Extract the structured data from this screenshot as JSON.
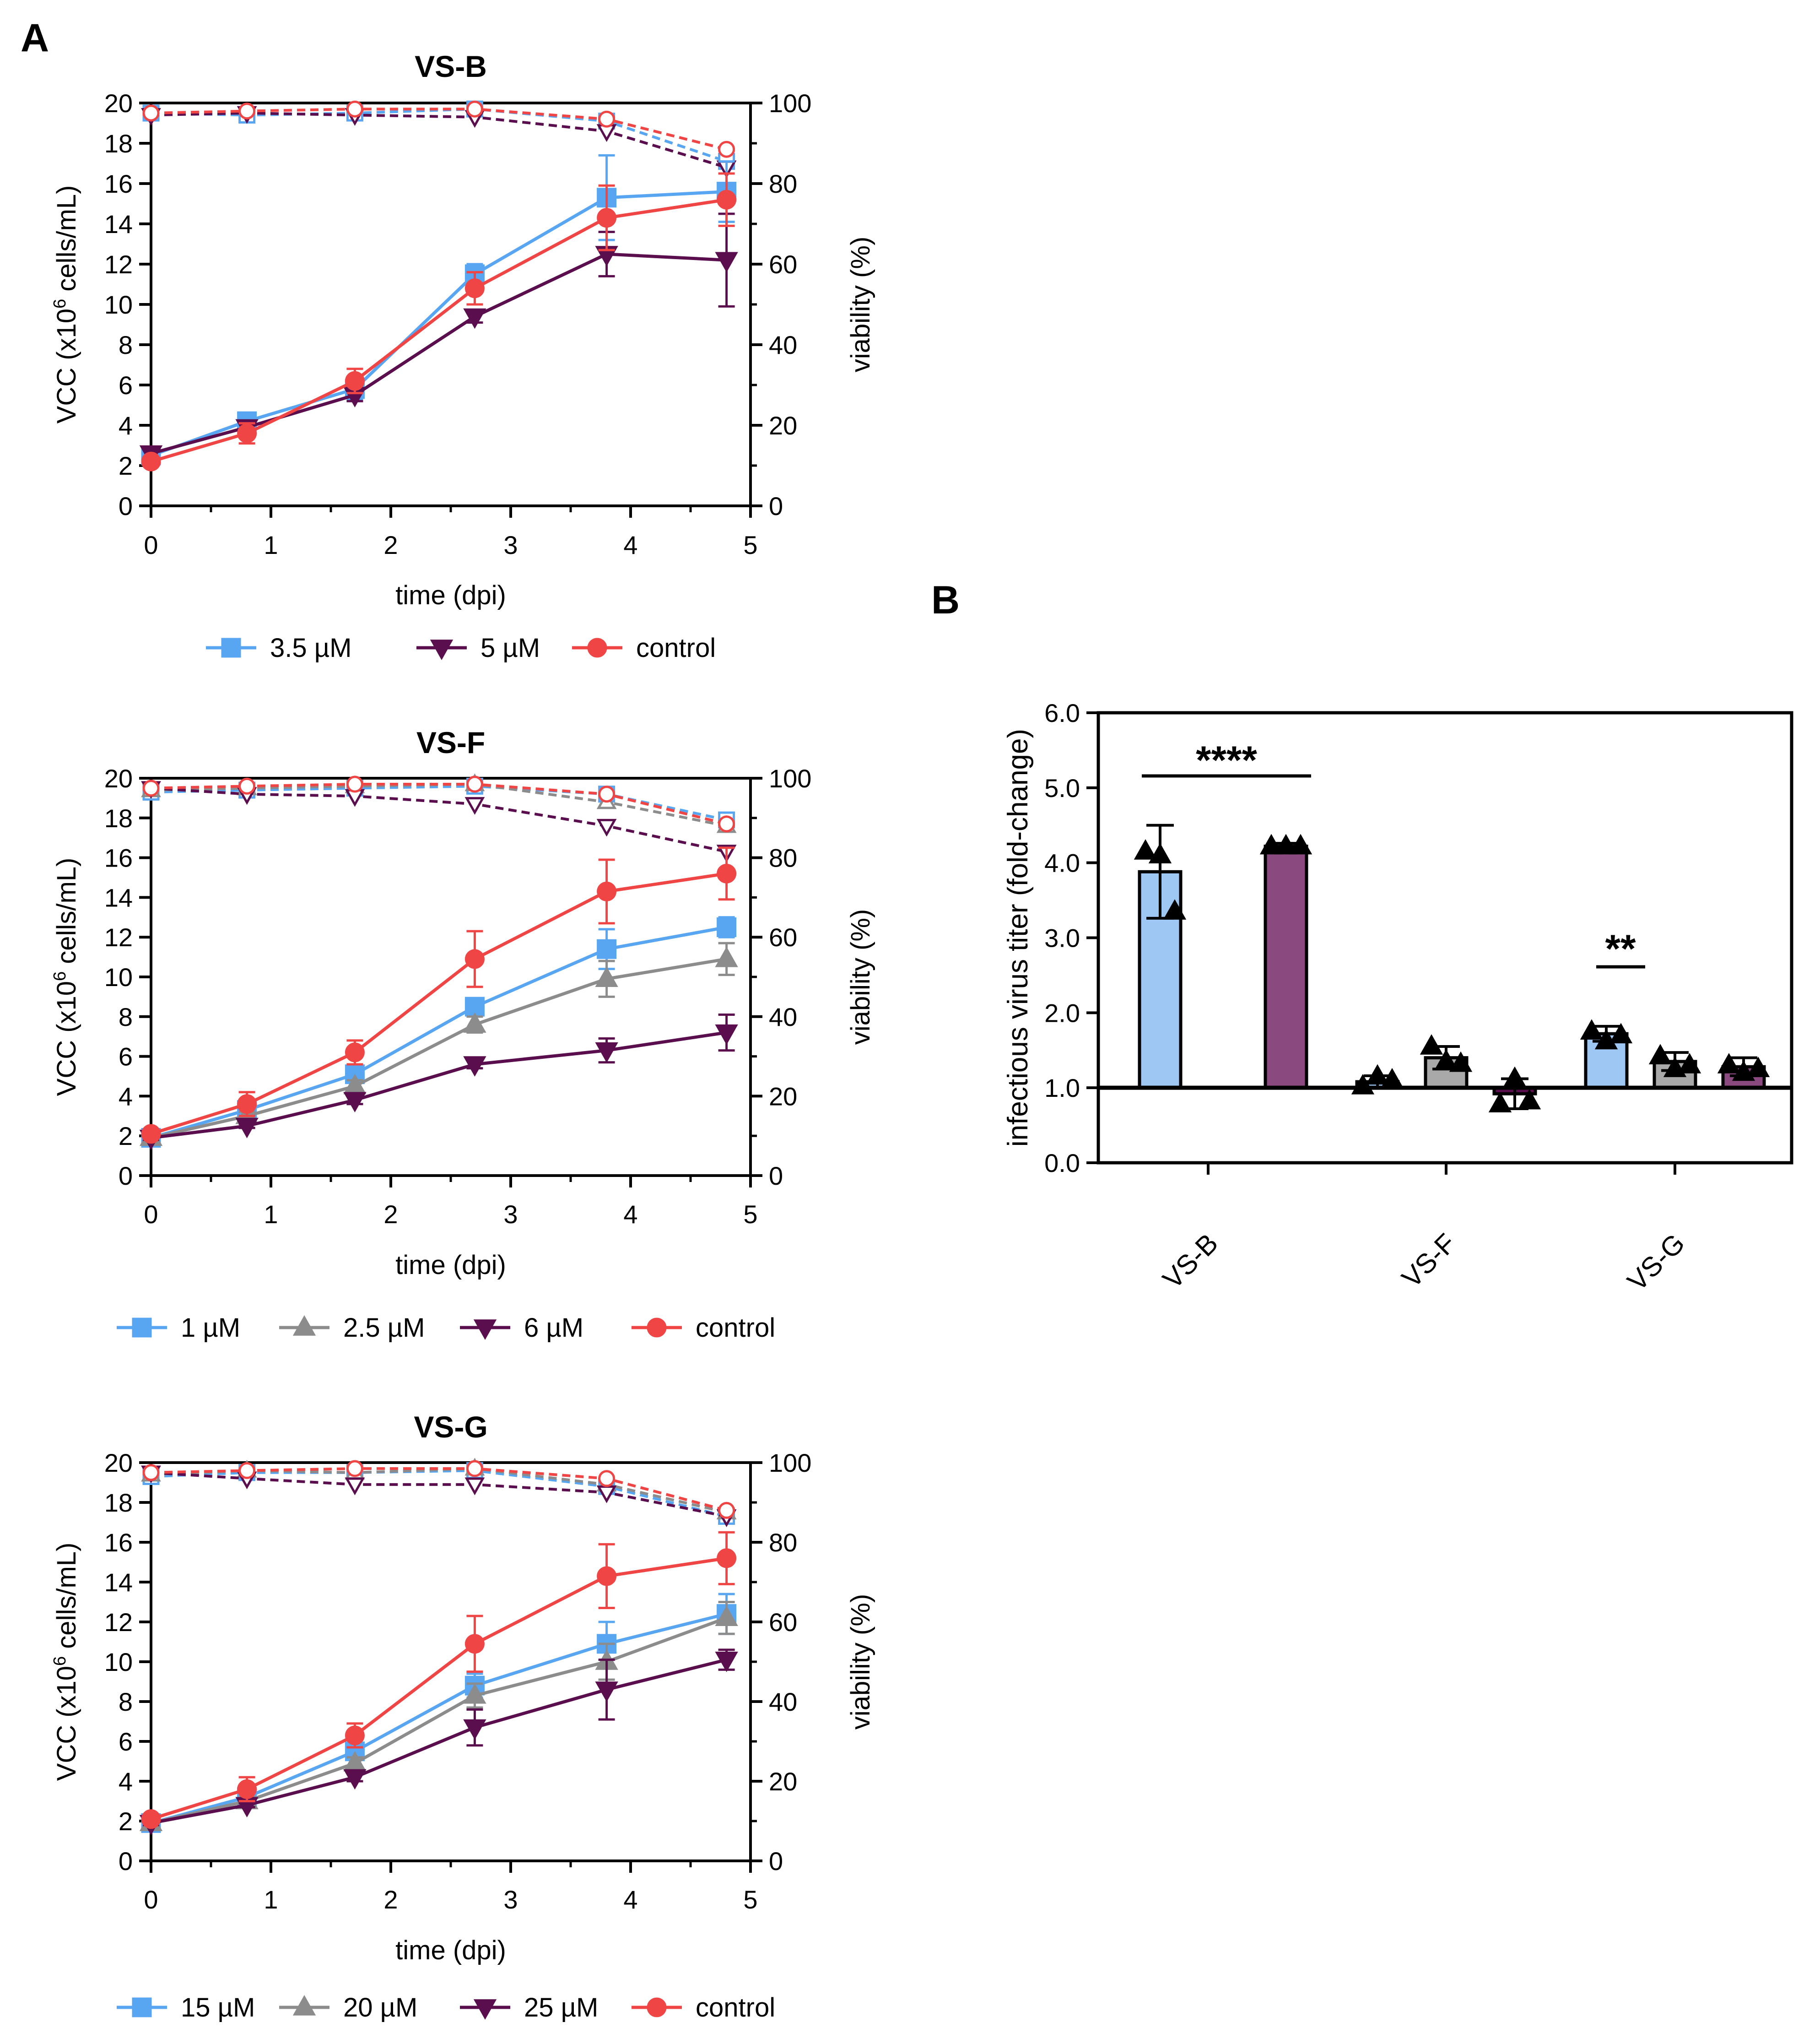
{
  "panels": {
    "A": "A",
    "B": "B"
  },
  "colors": {
    "blue": "#58A6F2",
    "gray": "#8C8C8C",
    "purple": "#5A0E4E",
    "red": "#F04545",
    "bar_blue": "#9EC7F4",
    "bar_gray": "#A9A9A9",
    "bar_purple": "#8B4A7F",
    "axis": "#000000"
  },
  "chart_data": [
    {
      "type": "line",
      "title": "VS-B",
      "xlabel": "time (dpi)",
      "ylabel_left": "VCC (x10^6 cells/mL)",
      "ylabel_left_parts": {
        "pre": "VCC (x10",
        "sup": "6",
        "post": " cells/mL)"
      },
      "ylabel_right": "viability (%)",
      "xlim": [
        0,
        5
      ],
      "ylim_left": [
        0,
        20
      ],
      "ylim_right": [
        0,
        100
      ],
      "xticks": [
        "0",
        "1",
        "2",
        "3",
        "4",
        "5"
      ],
      "yticks_left": [
        "0",
        "2",
        "4",
        "6",
        "8",
        "10",
        "12",
        "14",
        "16",
        "18",
        "20"
      ],
      "yticks_right": [
        "0",
        "20",
        "40",
        "60",
        "80",
        "100"
      ],
      "x": [
        0,
        0.8,
        1.7,
        2.7,
        3.8,
        4.8
      ],
      "series": [
        {
          "name": "3.5 µM",
          "color": "#58A6F2",
          "marker": "square",
          "vcc": [
            2.5,
            4.2,
            5.8,
            11.5,
            15.3,
            15.6
          ],
          "vcc_err": [
            0.2,
            0.3,
            0.5,
            0.5,
            2.1,
            1.5
          ],
          "viability": [
            97.5,
            97.0,
            97.5,
            98.5,
            95.5,
            85.5
          ]
        },
        {
          "name": "5 µM",
          "color": "#5A0E4E",
          "marker": "triangle-down",
          "vcc": [
            2.6,
            3.9,
            5.5,
            9.4,
            12.5,
            12.2
          ],
          "vcc_err": [
            0.2,
            0.2,
            0.3,
            0.3,
            1.1,
            2.3
          ],
          "viability": [
            97.0,
            97.5,
            97.0,
            96.5,
            93.0,
            84.0
          ]
        },
        {
          "name": "control",
          "color": "#F04545",
          "marker": "circle",
          "vcc": [
            2.2,
            3.6,
            6.2,
            10.8,
            14.3,
            15.2
          ],
          "vcc_err": [
            0.2,
            0.5,
            0.6,
            0.8,
            1.6,
            1.3
          ],
          "viability": [
            97.5,
            98.0,
            98.5,
            98.5,
            96.0,
            88.5
          ]
        }
      ]
    },
    {
      "type": "line",
      "title": "VS-F",
      "xlabel": "time (dpi)",
      "ylabel_left": "VCC (x10^6 cells/mL)",
      "ylabel_left_parts": {
        "pre": "VCC (x10",
        "sup": "6",
        "post": " cells/mL)"
      },
      "ylabel_right": "viability (%)",
      "xlim": [
        0,
        5
      ],
      "ylim_left": [
        0,
        20
      ],
      "ylim_right": [
        0,
        100
      ],
      "xticks": [
        "0",
        "1",
        "2",
        "3",
        "4",
        "5"
      ],
      "yticks_left": [
        "0",
        "2",
        "4",
        "6",
        "8",
        "10",
        "12",
        "14",
        "16",
        "18",
        "20"
      ],
      "yticks_right": [
        "0",
        "20",
        "40",
        "60",
        "80",
        "100"
      ],
      "x": [
        0,
        0.8,
        1.7,
        2.7,
        3.8,
        4.8
      ],
      "series": [
        {
          "name": "1 µM",
          "color": "#58A6F2",
          "marker": "square",
          "vcc": [
            1.9,
            3.3,
            5.1,
            8.5,
            11.4,
            12.5
          ],
          "vcc_err": [
            0.1,
            0.2,
            0.4,
            0.4,
            1.0,
            0.5
          ],
          "viability": [
            96.5,
            97.0,
            97.5,
            98.0,
            96.0,
            89.5
          ]
        },
        {
          "name": "2.5 µM",
          "color": "#8C8C8C",
          "marker": "triangle-up",
          "vcc": [
            1.9,
            3.0,
            4.5,
            7.6,
            9.9,
            10.9
          ],
          "vcc_err": [
            0.1,
            0.2,
            0.3,
            0.4,
            0.9,
            0.8
          ],
          "viability": [
            97.0,
            97.5,
            98.0,
            98.5,
            94.0,
            88.0
          ]
        },
        {
          "name": "6 µM",
          "color": "#5A0E4E",
          "marker": "triangle-down",
          "vcc": [
            1.9,
            2.5,
            3.8,
            5.6,
            6.3,
            7.2
          ],
          "vcc_err": [
            0.1,
            0.1,
            0.2,
            0.2,
            0.6,
            0.9
          ],
          "viability": [
            97.5,
            96.0,
            95.5,
            93.5,
            88.0,
            81.5
          ]
        },
        {
          "name": "control",
          "color": "#F04545",
          "marker": "circle",
          "vcc": [
            2.1,
            3.6,
            6.2,
            10.9,
            14.3,
            15.2
          ],
          "vcc_err": [
            0.1,
            0.6,
            0.6,
            1.4,
            1.6,
            1.3
          ],
          "viability": [
            97.5,
            98.0,
            98.5,
            98.5,
            96.0,
            88.5
          ]
        }
      ]
    },
    {
      "type": "line",
      "title": "VS-G",
      "xlabel": "time (dpi)",
      "ylabel_left": "VCC (x10^6 cells/mL)",
      "ylabel_left_parts": {
        "pre": "VCC (x10",
        "sup": "6",
        "post": " cells/mL)"
      },
      "ylabel_right": "viability (%)",
      "xlim": [
        0,
        5
      ],
      "ylim_left": [
        0,
        20
      ],
      "ylim_right": [
        0,
        100
      ],
      "xticks": [
        "0",
        "1",
        "2",
        "3",
        "4",
        "5"
      ],
      "yticks_left": [
        "0",
        "2",
        "4",
        "6",
        "8",
        "10",
        "12",
        "14",
        "16",
        "18",
        "20"
      ],
      "yticks_right": [
        "0",
        "20",
        "40",
        "60",
        "80",
        "100"
      ],
      "x": [
        0,
        0.8,
        1.7,
        2.7,
        3.8,
        4.8
      ],
      "series": [
        {
          "name": "15 µM",
          "color": "#58A6F2",
          "marker": "square",
          "vcc": [
            1.9,
            3.2,
            5.5,
            8.8,
            10.9,
            12.4
          ],
          "vcc_err": [
            0.1,
            0.2,
            0.4,
            0.6,
            1.1,
            1.0
          ],
          "viability": [
            96.5,
            97.5,
            97.5,
            98.0,
            94.0,
            86.5
          ]
        },
        {
          "name": "20 µM",
          "color": "#8C8C8C",
          "marker": "triangle-up",
          "vcc": [
            1.9,
            3.0,
            4.9,
            8.3,
            10.0,
            12.2
          ],
          "vcc_err": [
            0.1,
            0.2,
            0.3,
            0.6,
            0.9,
            0.8
          ],
          "viability": [
            97.0,
            98.0,
            97.5,
            98.5,
            94.5,
            87.5
          ]
        },
        {
          "name": "25 µM",
          "color": "#5A0E4E",
          "marker": "triangle-down",
          "vcc": [
            1.9,
            2.8,
            4.2,
            6.7,
            8.6,
            10.1
          ],
          "vcc_err": [
            0.1,
            0.1,
            0.2,
            0.9,
            1.5,
            0.5
          ],
          "viability": [
            97.5,
            96.0,
            94.5,
            94.5,
            92.5,
            86.5
          ]
        },
        {
          "name": "control",
          "color": "#F04545",
          "marker": "circle",
          "vcc": [
            2.1,
            3.6,
            6.3,
            10.9,
            14.3,
            15.2
          ],
          "vcc_err": [
            0.1,
            0.6,
            0.6,
            1.4,
            1.6,
            1.3
          ],
          "viability": [
            97.5,
            98.0,
            98.5,
            98.5,
            96.0,
            88.0
          ]
        }
      ]
    },
    {
      "type": "bar",
      "panel": "B",
      "ylabel": "infectious virus titer (fold-change)",
      "ylim": [
        0,
        6
      ],
      "yticks": [
        "0.0",
        "1.0",
        "2.0",
        "3.0",
        "4.0",
        "5.0",
        "6.0"
      ],
      "reference_line": 1.0,
      "categories": [
        "VS-B",
        "VS-F",
        "VS-G"
      ],
      "groups": [
        {
          "category": "VS-B",
          "bars": [
            {
              "color": "#9EC7F4",
              "value": 3.88,
              "err": 0.62,
              "points": [
                4.15,
                4.1,
                3.35
              ],
              "marker": "triangle-up"
            },
            {
              "color": "#8B4A7F",
              "value": 4.22,
              "err": 0.04,
              "points": [
                4.22,
                4.22,
                4.22
              ],
              "marker": "triangle-up"
            }
          ]
        },
        {
          "category": "VS-F",
          "bars": [
            {
              "color": "#9EC7F4",
              "value": 1.08,
              "err": 0.08,
              "points": [
                1.02,
                1.15,
                1.1
              ],
              "marker": "triangle-up"
            },
            {
              "color": "#A9A9A9",
              "value": 1.4,
              "err": 0.15,
              "points": [
                1.55,
                1.35,
                1.32
              ],
              "marker": "triangle-up"
            },
            {
              "color": "#5A0E4E",
              "value": 0.92,
              "err": 0.2,
              "points": [
                0.78,
                1.12,
                0.82
              ],
              "marker": "triangle-up"
            }
          ]
        },
        {
          "category": "VS-G",
          "bars": [
            {
              "color": "#9EC7F4",
              "value": 1.72,
              "err": 0.1,
              "points": [
                1.75,
                1.62,
                1.7
              ],
              "marker": "triangle-up"
            },
            {
              "color": "#A9A9A9",
              "value": 1.35,
              "err": 0.12,
              "points": [
                1.42,
                1.25,
                1.3
              ],
              "marker": "triangle-up"
            },
            {
              "color": "#8B4A7F",
              "value": 1.28,
              "err": 0.12,
              "points": [
                1.3,
                1.2,
                1.25
              ],
              "marker": "triangle-up"
            }
          ]
        }
      ],
      "significance": [
        {
          "label": "****",
          "over_category": "VS-B"
        },
        {
          "label": "**",
          "over_category": "VS-G"
        }
      ]
    }
  ]
}
